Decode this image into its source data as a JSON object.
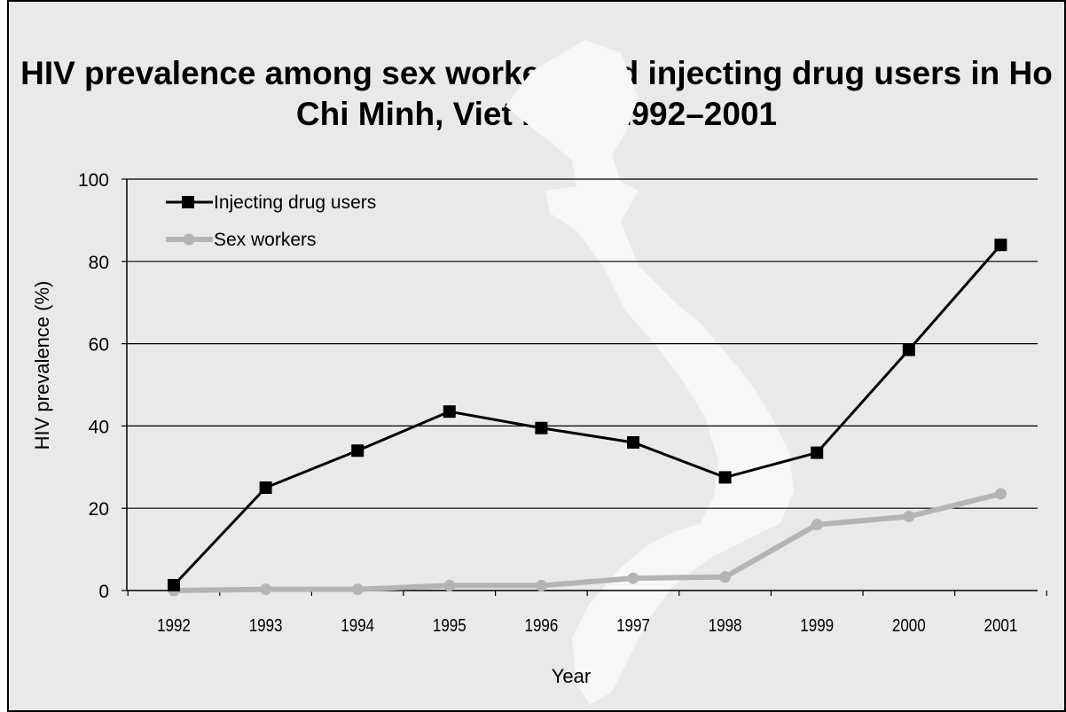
{
  "chart_data": {
    "type": "line",
    "title": "HIV prevalence among sex workers and injecting drug users in Ho Chi Minh, Viet Nam: 1992–2001",
    "xlabel": "Year",
    "ylabel": "HIV prevalence (%)",
    "ylim": [
      0,
      100
    ],
    "yticks": [
      "0",
      "20",
      "40",
      "60",
      "80",
      "100"
    ],
    "grid": true,
    "legend_position": "top-left",
    "categories": [
      "1992",
      "1993",
      "1994",
      "1995",
      "1996",
      "1997",
      "1998",
      "1999",
      "2000",
      "2001"
    ],
    "series": [
      {
        "name": "Injecting drug users",
        "color": "#000000",
        "marker": "square",
        "values": [
          1.3,
          25,
          34,
          43.5,
          39.5,
          36,
          27.5,
          33.5,
          58.5,
          84
        ]
      },
      {
        "name": "Sex workers",
        "color": "#b4b4b4",
        "marker": "circle",
        "values": [
          0,
          0.3,
          0.3,
          1.2,
          1.2,
          3,
          3.3,
          16,
          18,
          23.5
        ]
      }
    ]
  }
}
